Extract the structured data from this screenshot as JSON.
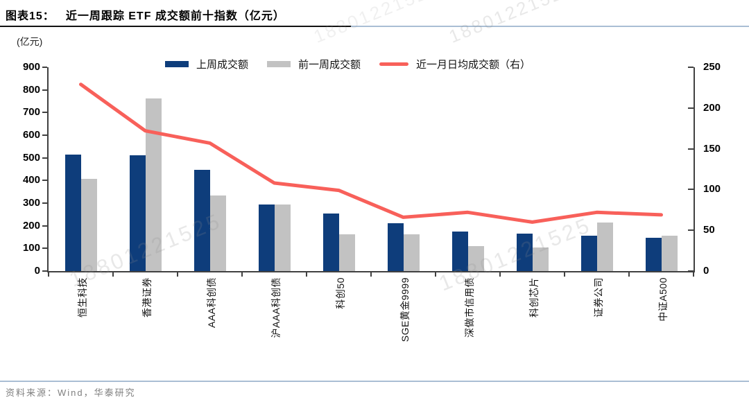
{
  "header": {
    "figure_label": "图表15：",
    "title": "近一周跟踪 ETF 成交额前十指数（亿元）"
  },
  "footer": {
    "source": "资料来源：Wind，华泰研究"
  },
  "watermark": {
    "text": "18801221525"
  },
  "chart_data": {
    "type": "bar+line",
    "title": "近一周跟踪 ETF 成交额前十指数（亿元）",
    "unit_label": "(亿元)",
    "legend_position": "top",
    "grid": false,
    "categories": [
      "恒生科技",
      "香港证券",
      "AAA科创债",
      "沪AAA科创债",
      "科创50",
      "SGE黄金9999",
      "深做市信用债",
      "科创芯片",
      "证券公司",
      "中证A500"
    ],
    "series": [
      {
        "name": "上周成交额",
        "type": "bar",
        "axis": "left",
        "color": "#0E3D7B",
        "values": [
          513,
          510,
          447,
          294,
          253,
          211,
          176,
          165,
          156,
          148
        ]
      },
      {
        "name": "前一周成交额",
        "type": "bar",
        "axis": "left",
        "color": "#C2C2C2",
        "values": [
          406,
          763,
          334,
          293,
          163,
          163,
          109,
          104,
          213,
          156
        ]
      },
      {
        "name": "近一月日均成交额（右）",
        "type": "line",
        "axis": "right",
        "color": "#F8605A",
        "values": [
          229,
          172,
          157,
          108,
          99,
          66,
          72,
          60,
          72,
          69
        ]
      }
    ],
    "left_axis": {
      "min": 0,
      "max": 900,
      "step": 100,
      "ticks": [
        0,
        100,
        200,
        300,
        400,
        500,
        600,
        700,
        800,
        900
      ]
    },
    "right_axis": {
      "min": 0,
      "max": 250,
      "step": 50,
      "ticks": [
        0,
        50,
        100,
        150,
        200,
        250
      ]
    }
  }
}
